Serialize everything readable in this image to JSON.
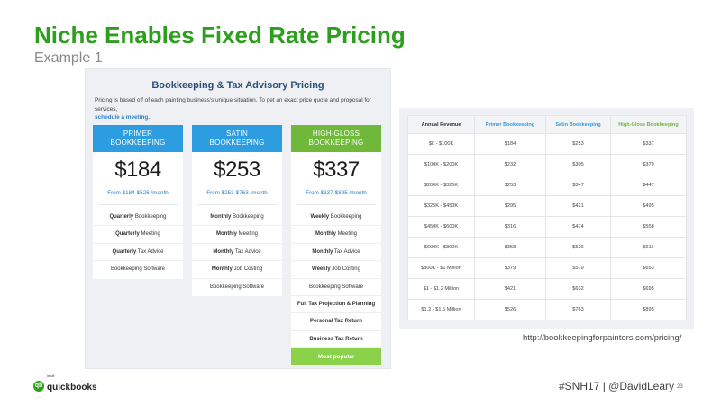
{
  "slide": {
    "title": "Niche Enables Fixed Rate Pricing",
    "subtitle": "Example 1"
  },
  "pricing": {
    "heading": "Bookkeeping & Tax Advisory Pricing",
    "intro_text": "Pricing is based off of each painting business's unique situation. To get an exact price quote and proposal for services,",
    "intro_link": "schedule a meeting.",
    "plans": [
      {
        "name_line1": "PRIMER",
        "name_line2": "BOOKKEEPING",
        "color": "#2b9de0",
        "price": "$184",
        "range": "From $184-$526 /month",
        "features": [
          {
            "bold": "Quarterly",
            "rest": " Bookkeeping"
          },
          {
            "bold": "Quarterly",
            "rest": " Meeting"
          },
          {
            "bold": "Quarterly",
            "rest": " Tax Advice"
          },
          {
            "bold": "",
            "rest": "Bookkeeping Software"
          }
        ]
      },
      {
        "name_line1": "SATIN",
        "name_line2": "BOOKKEEPING",
        "color": "#2b9de0",
        "price": "$253",
        "range": "From $253-$763 /month",
        "features": [
          {
            "bold": "Monthly",
            "rest": " Bookkeeping"
          },
          {
            "bold": "Monthly",
            "rest": " Meeting"
          },
          {
            "bold": "Monthly",
            "rest": " Tax Advice"
          },
          {
            "bold": "Monthly",
            "rest": " Job Costing"
          },
          {
            "bold": "",
            "rest": "Bookkeeping Software"
          }
        ]
      },
      {
        "name_line1": "HIGH-GLOSS",
        "name_line2": "BOOKKEEPING",
        "color": "#6fb83a",
        "price": "$337",
        "range": "From $337-$895 /month",
        "features": [
          {
            "bold": "Weekly",
            "rest": " Bookkeeping"
          },
          {
            "bold": "Monthly",
            "rest": " Meeting"
          },
          {
            "bold": "Monthly",
            "rest": " Tax Advice"
          },
          {
            "bold": "Weekly",
            "rest": " Job Costing"
          },
          {
            "bold": "",
            "rest": "Bookkeeping Software"
          },
          {
            "bold": "Full Tax Projection & Planning",
            "rest": ""
          },
          {
            "bold": "Personal Tax Return",
            "rest": ""
          },
          {
            "bold": "Business Tax Return",
            "rest": ""
          }
        ],
        "badge": "Most popular"
      }
    ]
  },
  "revenue_table": {
    "columns": [
      {
        "label": "Annual Revenue",
        "color": "#333333"
      },
      {
        "label": "Primer Bookkeeping",
        "color": "#2b9de0"
      },
      {
        "label": "Satin Bookkeeping",
        "color": "#2b9de0"
      },
      {
        "label": "High-Gloss Bookkeeping",
        "color": "#6fb83a"
      }
    ],
    "rows": [
      [
        "$0 - $100K",
        "$184",
        "$253",
        "$337"
      ],
      [
        "$100K - $200K",
        "$232",
        "$305",
        "$379"
      ],
      [
        "$200K - $325K",
        "$253",
        "$347",
        "$447"
      ],
      [
        "$325K - $450K",
        "$295",
        "$421",
        "$495"
      ],
      [
        "$450K - $600K",
        "$316",
        "$474",
        "$558"
      ],
      [
        "$600K - $800K",
        "$358",
        "$526",
        "$611"
      ],
      [
        "$800K - $1 Million",
        "$379",
        "$579",
        "$653"
      ],
      [
        "$1 - $1.2 Million",
        "$421",
        "$632",
        "$695"
      ],
      [
        "$1.2 - $1.5 Million",
        "$526",
        "$763",
        "$895"
      ]
    ],
    "source_url": "http://bookkeepingforpainters.com/pricing/"
  },
  "footer": {
    "logo_small": "intuit",
    "logo_word": "quickbooks",
    "logo_mark": "qb",
    "tag": "#SNH17 | @DavidLeary",
    "page_number": "23"
  }
}
